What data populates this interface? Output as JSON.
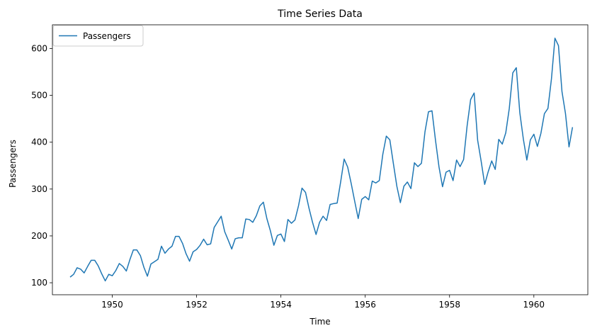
{
  "chart_data": {
    "type": "line",
    "title": "Time Series Data",
    "xlabel": "Time",
    "ylabel": "Passengers",
    "x_start": "1949-01",
    "x_step": "1 month",
    "xlim": [
      1948.58,
      1961.28
    ],
    "ylim": [
      74.4,
      650.6
    ],
    "xticks": [
      1950,
      1952,
      1954,
      1956,
      1958,
      1960
    ],
    "xtick_labels": [
      "1950",
      "1952",
      "1954",
      "1956",
      "1958",
      "1960"
    ],
    "yticks": [
      100,
      200,
      300,
      400,
      500,
      600
    ],
    "ytick_labels": [
      "100",
      "200",
      "300",
      "400",
      "500",
      "600"
    ],
    "grid": false,
    "legend_position": "top-left",
    "series": [
      {
        "name": "Passengers",
        "color": "#1f77b4",
        "values": [
          112,
          118,
          132,
          129,
          121,
          135,
          148,
          148,
          136,
          119,
          104,
          118,
          115,
          126,
          141,
          135,
          125,
          149,
          170,
          170,
          158,
          133,
          114,
          140,
          145,
          150,
          178,
          163,
          172,
          178,
          199,
          199,
          184,
          162,
          146,
          166,
          171,
          180,
          193,
          181,
          183,
          218,
          230,
          242,
          209,
          191,
          172,
          194,
          196,
          196,
          236,
          235,
          229,
          243,
          264,
          272,
          237,
          211,
          180,
          201,
          204,
          188,
          235,
          227,
          234,
          264,
          302,
          293,
          259,
          229,
          203,
          229,
          242,
          233,
          267,
          269,
          270,
          315,
          364,
          347,
          312,
          274,
          237,
          278,
          284,
          277,
          317,
          313,
          318,
          374,
          413,
          405,
          355,
          306,
          271,
          306,
          315,
          301,
          356,
          348,
          355,
          422,
          465,
          467,
          404,
          347,
          305,
          336,
          340,
          318,
          362,
          348,
          363,
          435,
          491,
          505,
          404,
          359,
          310,
          337,
          360,
          342,
          406,
          396,
          420,
          472,
          548,
          559,
          463,
          407,
          362,
          405,
          417,
          391,
          419,
          461,
          472,
          535,
          622,
          606,
          508,
          461,
          390,
          432
        ]
      }
    ]
  }
}
